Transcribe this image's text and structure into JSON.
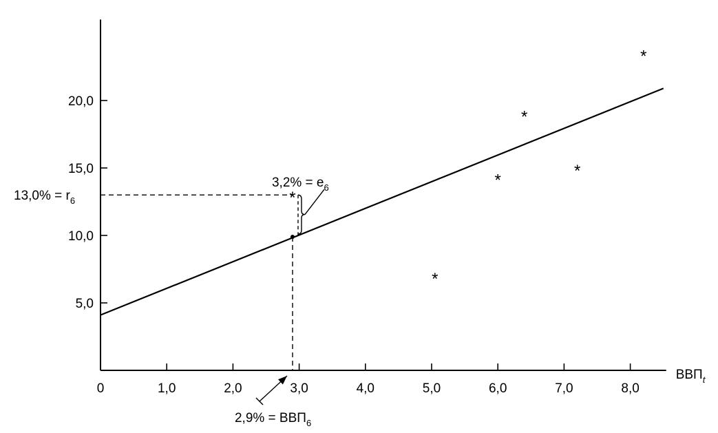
{
  "chart_data": {
    "type": "scatter",
    "title": "",
    "xlabel_main": "ВВП",
    "xlabel_sub": "t",
    "ylabel": "",
    "xlim": [
      0,
      8.5
    ],
    "ylim": [
      0,
      26
    ],
    "x_ticks": [
      0,
      1,
      2,
      3,
      4,
      5,
      6,
      7,
      8
    ],
    "x_tick_labels": [
      "0",
      "1,0",
      "2,0",
      "3,0",
      "4,0",
      "5,0",
      "6,0",
      "7,0",
      "8,0"
    ],
    "y_ticks": [
      5,
      10,
      15,
      20
    ],
    "y_tick_labels": [
      "5,0",
      "10,0",
      "15,0",
      "20,0"
    ],
    "grid": false,
    "points": [
      {
        "x": 2.9,
        "y": 13.0
      },
      {
        "x": 5.05,
        "y": 7.0
      },
      {
        "x": 6.0,
        "y": 14.3
      },
      {
        "x": 6.4,
        "y": 19.0
      },
      {
        "x": 7.2,
        "y": 15.0
      },
      {
        "x": 8.2,
        "y": 23.5
      }
    ],
    "regression_line": {
      "x": [
        0,
        8.5
      ],
      "y": [
        4.1,
        20.9
      ]
    },
    "highlight": {
      "x": 2.9,
      "actual": 13.0,
      "fitted": 9.9,
      "residual_label": "3,2% = e",
      "residual_sub": "6",
      "actual_label": "13,0% = r",
      "actual_sub": "6",
      "gdp_label": "2,9% = ВВП",
      "gdp_sub": "6"
    },
    "point_symbol": "*"
  }
}
